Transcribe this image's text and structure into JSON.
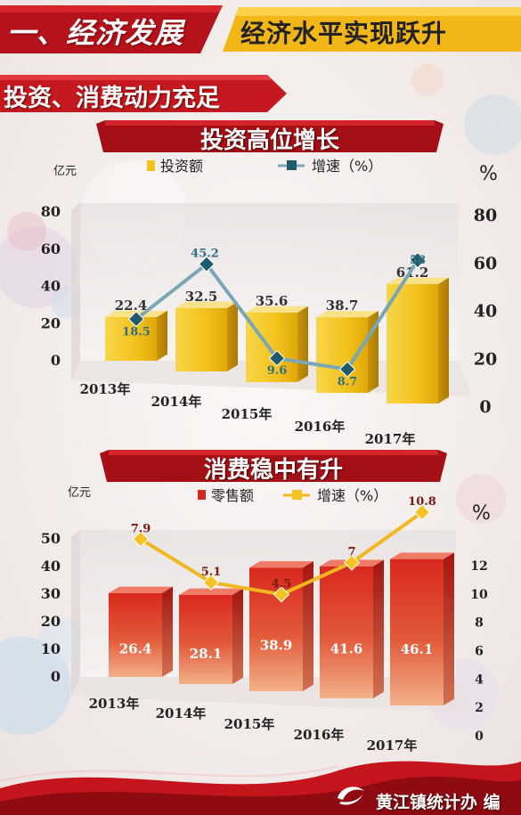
{
  "header": {
    "section_title": "一、经济发展",
    "subtitle": "经济水平实现跃升"
  },
  "section_tag": "投资、消费动力充足",
  "footer": {
    "credit": "黄江镇统计办 编"
  },
  "colors": {
    "red": "#c0161b",
    "gold": "#f5c21a",
    "teal": "#2e6f86",
    "orange_line": "#f0b81e"
  },
  "chart_data": [
    {
      "type": "bar",
      "title": "投资高位增长",
      "left_unit": "亿元",
      "right_unit": "%",
      "categories": [
        "2013年",
        "2014年",
        "2015年",
        "2016年",
        "2017年"
      ],
      "series": [
        {
          "name": "投资额",
          "kind": "bar",
          "axis": "left",
          "values": [
            22.4,
            32.5,
            35.6,
            38.7,
            61.2
          ]
        },
        {
          "name": "增速（%）",
          "kind": "line",
          "axis": "right",
          "values": [
            18.5,
            45.2,
            9.6,
            8.7,
            58
          ]
        }
      ],
      "y_ticks": [
        "0",
        "20",
        "40",
        "60",
        "80"
      ],
      "y2_ticks": [
        "0",
        "20",
        "40",
        "60",
        "80"
      ],
      "ylim": [
        0,
        80
      ],
      "y2lim": [
        0,
        80
      ]
    },
    {
      "type": "bar",
      "title": "消费稳中有升",
      "left_unit": "亿元",
      "right_unit": "%",
      "categories": [
        "2013年",
        "2014年",
        "2015年",
        "2016年",
        "2017年"
      ],
      "series": [
        {
          "name": "零售额",
          "kind": "bar",
          "axis": "left",
          "values": [
            26.4,
            28.1,
            38.9,
            41.6,
            46.1
          ]
        },
        {
          "name": "增速（%）",
          "kind": "line",
          "axis": "right",
          "values": [
            7.9,
            5.1,
            4.5,
            7.0,
            10.8
          ]
        }
      ],
      "y_ticks": [
        "0",
        "10",
        "20",
        "30",
        "40",
        "50"
      ],
      "y2_ticks": [
        "0",
        "2",
        "4",
        "6",
        "8",
        "10",
        "12"
      ],
      "ylim": [
        0,
        50
      ],
      "y2lim": [
        0,
        12
      ]
    }
  ]
}
